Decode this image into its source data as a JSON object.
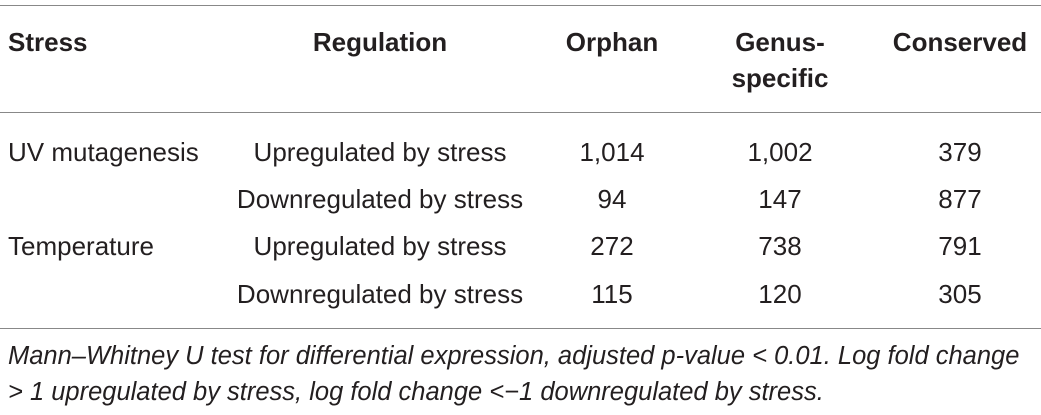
{
  "table": {
    "header": [
      "Stress",
      "Regulation",
      "Orphan",
      "Genus-specific",
      "Conserved"
    ],
    "rows": [
      {
        "stress": "UV mutagenesis",
        "regulation": "Upregulated by stress",
        "values": [
          "1,014",
          "1,002",
          "379"
        ]
      },
      {
        "regulation": "Downregulated by stress",
        "values": [
          "94",
          "147",
          "877"
        ]
      },
      {
        "stress": "Temperature",
        "regulation": "Upregulated by stress",
        "values": [
          "272",
          "738",
          "791"
        ]
      },
      {
        "regulation": "Downregulated by stress",
        "values": [
          "115",
          "120",
          "305"
        ]
      }
    ],
    "footnote": "Mann–Whitney U test for differential expression, adjusted p-value < 0.01. Log fold change > 1 upregulated by stress, log fold change <−1 downregulated by stress."
  }
}
